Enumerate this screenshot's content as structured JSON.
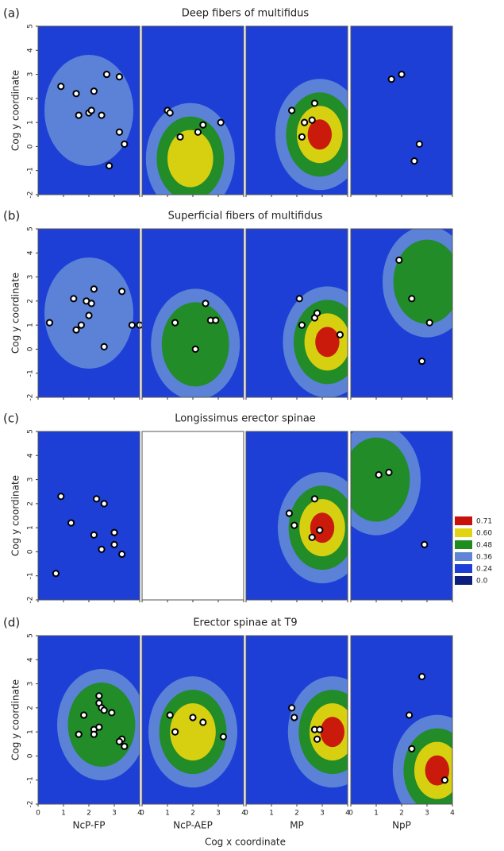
{
  "chart_data": [
    {
      "type": "contour",
      "label": "(a)",
      "title": "Deep fibers of multifidus",
      "ylabel": "Cog y coordinate",
      "xlim": [
        0,
        4
      ],
      "ylim": [
        -2,
        5
      ],
      "xticks": [
        0,
        1,
        2,
        3,
        4
      ],
      "yticks": [
        -2,
        -1,
        0,
        1,
        2,
        3,
        4,
        5
      ],
      "panels": [
        {
          "points": {
            "x": [
              0.9,
              1.5,
              1.6,
              2.0,
              2.1,
              2.2,
              2.5,
              2.7,
              3.2,
              3.2,
              3.4,
              2.8
            ],
            "y": [
              2.5,
              2.2,
              1.3,
              1.4,
              1.5,
              2.3,
              1.3,
              3.0,
              2.9,
              0.6,
              0.1,
              -0.8
            ]
          },
          "peak": {
            "x": 2,
            "y": 1.5,
            "value": 0.36
          }
        },
        {
          "points": {
            "x": [
              1.0,
              1.1,
              2.4,
              1.5,
              2.2,
              3.1
            ],
            "y": [
              1.5,
              1.4,
              0.9,
              0.4,
              0.6,
              1.0
            ]
          },
          "peak": {
            "x": 1.9,
            "y": -0.5,
            "value": 0.6
          }
        },
        {
          "points": {
            "x": [
              1.8,
              2.7,
              2.6,
              2.3,
              2.2
            ],
            "y": [
              1.5,
              1.8,
              1.1,
              1.0,
              0.4
            ]
          },
          "peak": {
            "x": 2.9,
            "y": 0.5,
            "value": 0.71
          }
        },
        {
          "points": {
            "x": [
              1.6,
              2.0,
              2.7,
              2.5
            ],
            "y": [
              2.8,
              3.0,
              0.1,
              -0.6
            ]
          },
          "peak": {
            "x": 2,
            "y": 2,
            "value": 0.24
          }
        }
      ]
    },
    {
      "type": "contour",
      "label": "(b)",
      "title": "Superficial fibers of multifidus",
      "ylabel": "Cog y coordinate",
      "xlim": [
        0,
        4
      ],
      "ylim": [
        -2,
        5
      ],
      "xticks": [
        0,
        1,
        2,
        3,
        4
      ],
      "yticks": [
        -2,
        -1,
        0,
        1,
        2,
        3,
        4,
        5
      ],
      "panels": [
        {
          "points": {
            "x": [
              0.45,
              1.4,
              1.5,
              1.9,
              2.1,
              2.2,
              2.0,
              1.7,
              2.6,
              3.3,
              3.7,
              4.0
            ],
            "y": [
              1.1,
              2.1,
              0.8,
              2.0,
              1.9,
              2.5,
              1.4,
              1.0,
              0.1,
              2.4,
              1.0,
              1.0
            ]
          },
          "peak": {
            "x": 2,
            "y": 1.5,
            "value": 0.36
          }
        },
        {
          "points": {
            "x": [
              1.3,
              2.5,
              2.7,
              2.9,
              2.1
            ],
            "y": [
              1.1,
              1.9,
              1.2,
              1.2,
              0.0
            ]
          },
          "peak": {
            "x": 2.1,
            "y": 0.2,
            "value": 0.48
          }
        },
        {
          "points": {
            "x": [
              2.1,
              2.2,
              2.7,
              2.8,
              3.7
            ],
            "y": [
              2.1,
              1.0,
              1.3,
              1.5,
              0.6
            ]
          },
          "peak": {
            "x": 3.2,
            "y": 0.3,
            "value": 0.71
          }
        },
        {
          "points": {
            "x": [
              1.9,
              2.4,
              3.1,
              2.8
            ],
            "y": [
              3.7,
              2.1,
              1.1,
              -0.5
            ]
          },
          "peak": {
            "x": 3,
            "y": 2.8,
            "value": 0.48
          }
        }
      ]
    },
    {
      "type": "contour",
      "label": "(c)",
      "title": "Longissimus erector spinae",
      "ylabel": "Cog y coordinate",
      "xlim": [
        0,
        4
      ],
      "ylim": [
        -2,
        5
      ],
      "xticks": [
        0,
        1,
        2,
        3,
        4
      ],
      "yticks": [
        -2,
        -1,
        0,
        1,
        2,
        3,
        4,
        5
      ],
      "panels": [
        {
          "points": {
            "x": [
              0.9,
              1.3,
              2.3,
              2.6,
              2.2,
              2.5,
              3.0,
              3.3,
              0.7,
              3.0
            ],
            "y": [
              2.3,
              1.2,
              2.2,
              2.0,
              0.7,
              0.1,
              0.3,
              -0.1,
              -0.9,
              0.8
            ]
          },
          "peak": {
            "x": 0.8,
            "y": -1,
            "value": 0.24
          }
        },
        null,
        {
          "points": {
            "x": [
              1.7,
              1.9,
              2.7,
              2.9,
              2.6
            ],
            "y": [
              1.6,
              1.1,
              2.2,
              0.9,
              0.6
            ]
          },
          "peak": {
            "x": 3,
            "y": 1,
            "value": 0.71
          }
        },
        {
          "points": {
            "x": [
              1.1,
              1.5,
              2.9
            ],
            "y": [
              3.2,
              3.3,
              0.3
            ]
          },
          "peak": {
            "x": 1,
            "y": 3,
            "value": 0.48
          }
        }
      ]
    },
    {
      "type": "contour",
      "label": "(d)",
      "title": "Erector spinae at T9",
      "ylabel": "Cog y coordinate",
      "xlabel": "Cog x coordinate",
      "categories": [
        "NcP-FP",
        "NcP-AEP",
        "MP",
        "NpP"
      ],
      "xlim": [
        0,
        4
      ],
      "ylim": [
        -2,
        5
      ],
      "xticks": [
        0,
        1,
        2,
        3,
        4
      ],
      "yticks": [
        -2,
        -1,
        0,
        1,
        2,
        3,
        4,
        5
      ],
      "legend": {
        "levels": [
          {
            "value": 0.71,
            "label": "0.71"
          },
          {
            "value": 0.6,
            "label": "0.60"
          },
          {
            "value": 0.48,
            "label": "0.48"
          },
          {
            "value": 0.36,
            "label": "0.36"
          },
          {
            "value": 0.24,
            "label": "0.24"
          },
          {
            "value": 0,
            "label": "0.0"
          }
        ],
        "colors": [
          "#c8100c",
          "#e2d410",
          "#1f8c1f",
          "#5f86d6",
          "#1d3fd6",
          "#0d1f7a"
        ]
      },
      "panels": [
        {
          "points": {
            "x": [
              2.4,
              2.4,
              2.5,
              2.6,
              2.9,
              1.8,
              2.2,
              2.2,
              2.4,
              1.6,
              3.3,
              3.2,
              3.4
            ],
            "y": [
              2.5,
              2.2,
              2.0,
              1.9,
              1.8,
              1.7,
              1.1,
              0.9,
              1.2,
              0.9,
              0.7,
              0.6,
              0.4
            ]
          },
          "peak": {
            "x": 2.5,
            "y": 1.3,
            "value": 0.48
          }
        },
        {
          "points": {
            "x": [
              1.1,
              1.3,
              2.0,
              2.4,
              3.2
            ],
            "y": [
              1.7,
              1.0,
              1.6,
              1.4,
              0.8
            ]
          },
          "peak": {
            "x": 2,
            "y": 1,
            "value": 0.6
          }
        },
        {
          "points": {
            "x": [
              1.8,
              1.9,
              2.7,
              2.8,
              2.9
            ],
            "y": [
              2.0,
              1.6,
              1.1,
              0.7,
              1.1
            ]
          },
          "peak": {
            "x": 3.4,
            "y": 1,
            "value": 0.71
          }
        },
        {
          "points": {
            "x": [
              2.8,
              2.3,
              2.4,
              3.7
            ],
            "y": [
              3.3,
              1.7,
              0.3,
              -1.0
            ]
          },
          "peak": {
            "x": 3.4,
            "y": -0.6,
            "value": 0.71
          }
        }
      ]
    }
  ]
}
